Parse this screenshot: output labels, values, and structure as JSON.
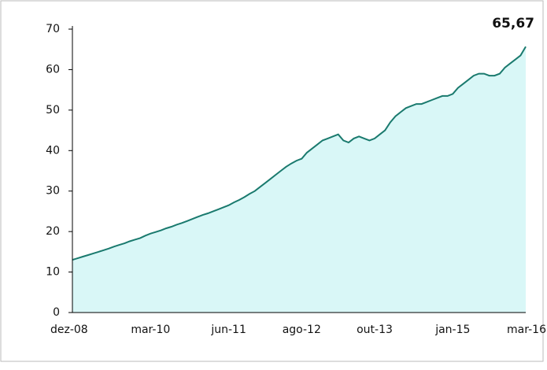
{
  "chart_data": {
    "type": "area",
    "categories": [
      "dez-08",
      null,
      null,
      null,
      null,
      null,
      null,
      null,
      null,
      null,
      null,
      null,
      null,
      null,
      null,
      "mar-10",
      null,
      null,
      null,
      null,
      null,
      null,
      null,
      null,
      null,
      null,
      null,
      null,
      null,
      null,
      "jun-11",
      null,
      null,
      null,
      null,
      null,
      null,
      null,
      null,
      null,
      null,
      null,
      null,
      null,
      "ago-12",
      null,
      null,
      null,
      null,
      null,
      null,
      null,
      null,
      null,
      null,
      null,
      null,
      null,
      "out-13",
      null,
      null,
      null,
      null,
      null,
      null,
      null,
      null,
      null,
      null,
      null,
      null,
      null,
      null,
      "jan-15",
      null,
      null,
      null,
      null,
      null,
      null,
      null,
      null,
      null,
      null,
      null,
      null,
      null,
      "mar-16"
    ],
    "values": [
      13.0,
      13.4,
      13.8,
      14.2,
      14.6,
      15.0,
      15.4,
      15.8,
      16.3,
      16.7,
      17.1,
      17.6,
      18.0,
      18.4,
      19.0,
      19.5,
      19.9,
      20.3,
      20.8,
      21.2,
      21.7,
      22.1,
      22.6,
      23.1,
      23.6,
      24.1,
      24.5,
      25.0,
      25.5,
      26.0,
      26.5,
      27.2,
      27.8,
      28.5,
      29.3,
      30.0,
      31.0,
      32.0,
      33.0,
      34.0,
      35.0,
      36.0,
      36.8,
      37.5,
      38.0,
      39.5,
      40.5,
      41.5,
      42.5,
      43.0,
      43.5,
      44.0,
      42.5,
      42.0,
      43.0,
      43.5,
      43.0,
      42.5,
      43.0,
      44.0,
      45.0,
      47.0,
      48.5,
      49.5,
      50.5,
      51.0,
      51.5,
      51.5,
      52.0,
      52.5,
      53.0,
      53.5,
      53.5,
      54.0,
      55.5,
      56.5,
      57.5,
      58.5,
      59.0,
      59.0,
      58.5,
      58.5,
      59.0,
      60.5,
      61.5,
      62.5,
      63.5,
      65.67
    ],
    "value_labels": [
      null,
      null,
      null,
      null,
      null,
      null,
      null,
      null,
      null,
      null,
      null,
      null,
      null,
      null,
      null,
      null,
      null,
      null,
      null,
      null,
      null,
      null,
      null,
      null,
      null,
      null,
      null,
      null,
      null,
      null,
      null,
      null,
      null,
      null,
      null,
      null,
      null,
      null,
      null,
      null,
      null,
      null,
      null,
      null,
      null,
      null,
      null,
      null,
      null,
      null,
      null,
      null,
      null,
      null,
      null,
      null,
      null,
      null,
      null,
      null,
      null,
      null,
      null,
      null,
      null,
      null,
      null,
      null,
      null,
      null,
      null,
      null,
      null,
      null,
      null,
      null,
      null,
      null,
      null,
      null,
      null,
      null,
      null,
      null,
      null,
      null,
      null,
      "65,67"
    ],
    "color": "#1a7a6e",
    "fill": "#d9f7f7",
    "ylim": [
      0,
      70
    ],
    "yticks": [
      0,
      10,
      20,
      30,
      40,
      50,
      60,
      70
    ]
  }
}
